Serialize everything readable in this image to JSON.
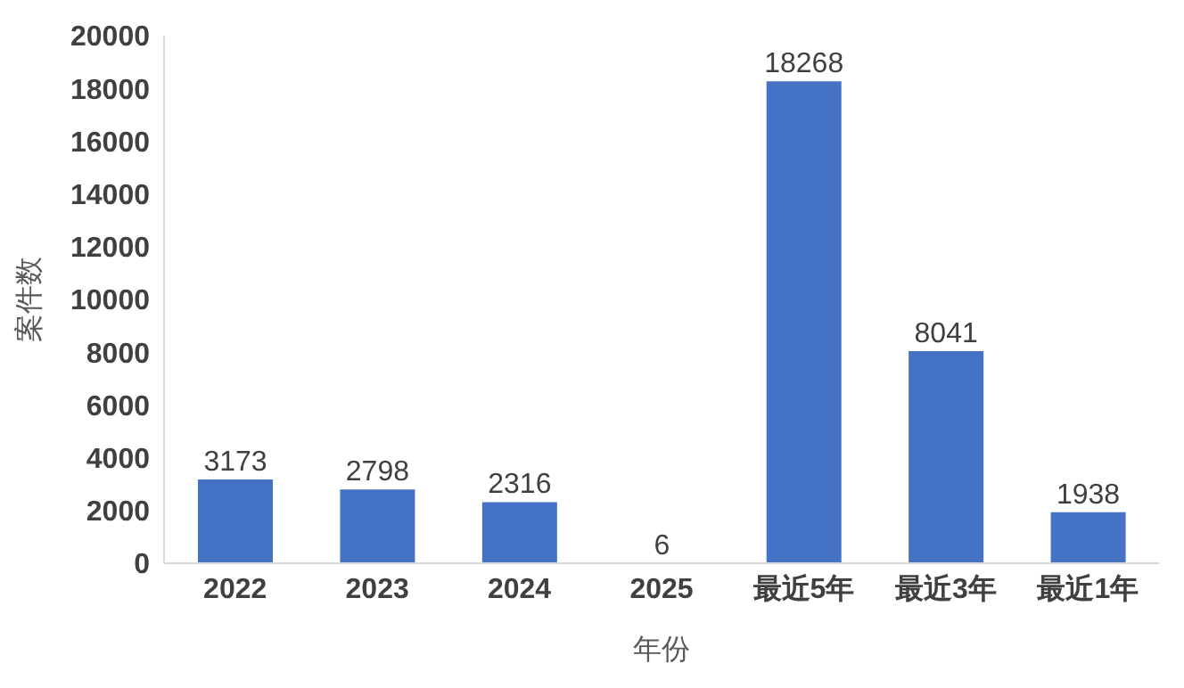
{
  "chart_data": {
    "type": "bar",
    "ylabel": "案件数",
    "xlabel": "年份",
    "categories": [
      "2022",
      "2023",
      "2024",
      "2025",
      "最近5年",
      "最近3年",
      "最近1年"
    ],
    "values": [
      3173,
      2798,
      2316,
      6,
      18268,
      8041,
      1938
    ],
    "color": "#4472c4",
    "ylim": [
      0,
      20000
    ],
    "yticks": [
      0,
      2000,
      4000,
      6000,
      8000,
      10000,
      12000,
      14000,
      16000,
      18000,
      20000
    ],
    "grid": false,
    "legend": false,
    "data_labels": true
  }
}
